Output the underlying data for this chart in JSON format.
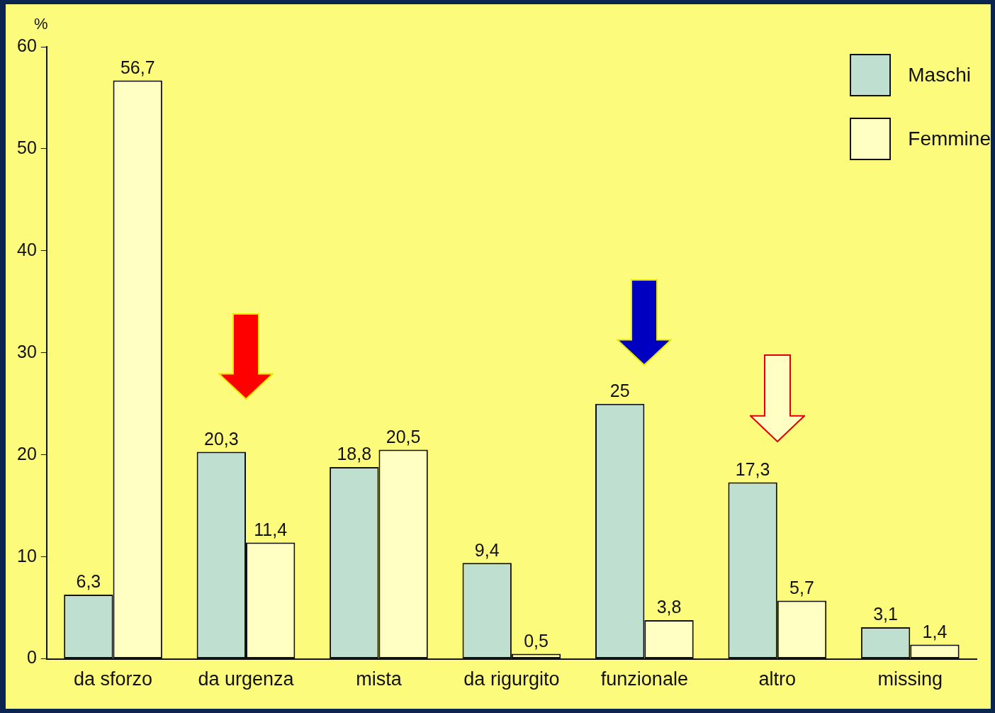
{
  "chart_data": {
    "type": "bar",
    "ylabel": "%",
    "categories": [
      "da sforzo",
      "da urgenza",
      "mista",
      "da rigurgito",
      "funzionale",
      "altro",
      "missing"
    ],
    "series": [
      {
        "name": "Maschi",
        "color": "#bfe0d0",
        "values": [
          6.3,
          20.3,
          18.8,
          9.4,
          25,
          17.3,
          3.1
        ],
        "value_labels": [
          "6,3",
          "20,3",
          "18,8",
          "9,4",
          "25",
          "17,3",
          "3,1"
        ]
      },
      {
        "name": "Femmine",
        "color": "#ffffc4",
        "values": [
          56.7,
          11.4,
          20.5,
          0.5,
          3.8,
          5.7,
          1.4
        ],
        "value_labels": [
          "56,7",
          "11,4",
          "20,5",
          "0,5",
          "3,8",
          "5,7",
          "1,4"
        ]
      }
    ],
    "ylim": [
      0,
      60
    ],
    "yticks": [
      0,
      10,
      20,
      30,
      40,
      50,
      60
    ],
    "grid": false,
    "legend": "top right"
  }
}
